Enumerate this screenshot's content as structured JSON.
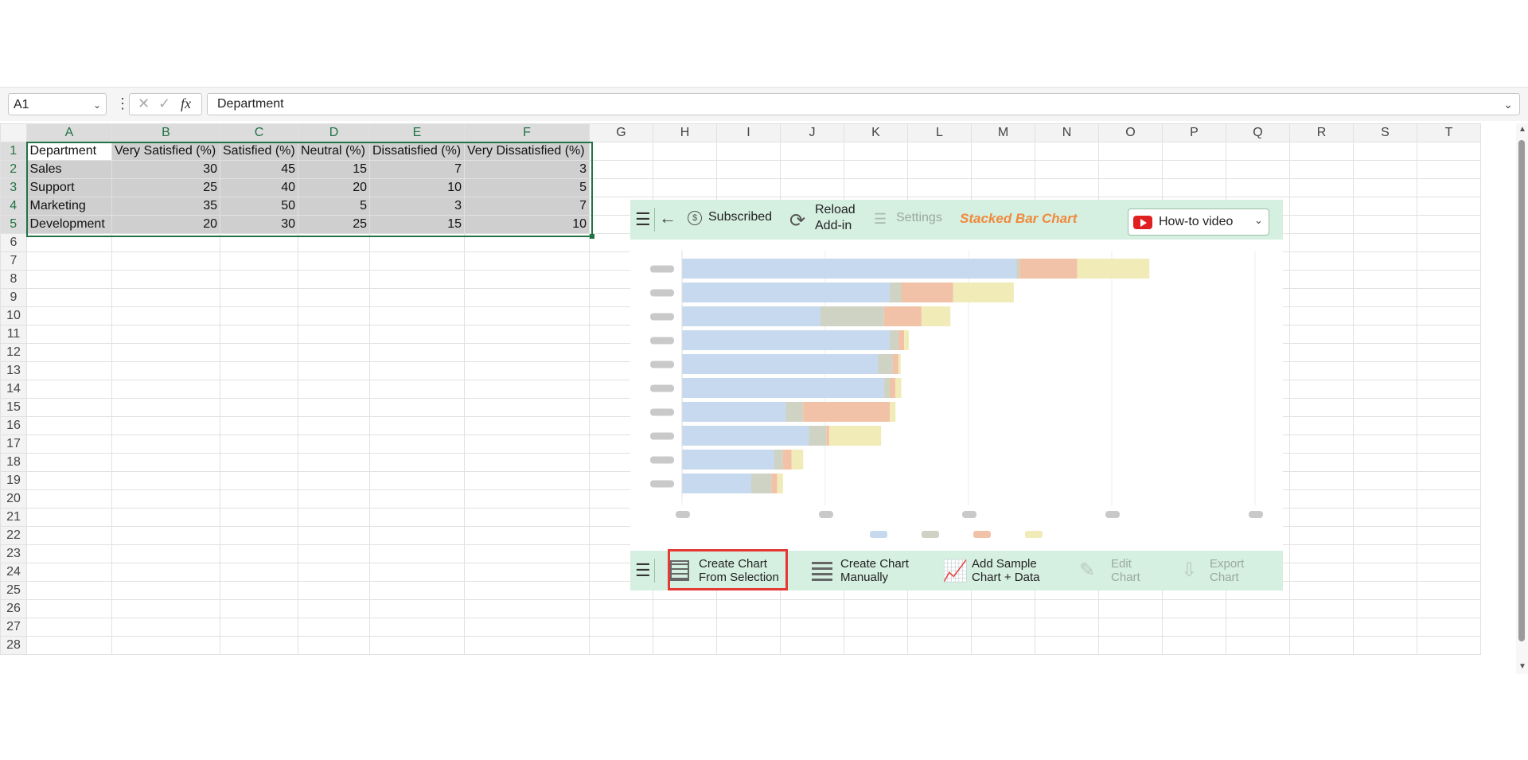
{
  "formula_bar": {
    "name_box": "A1",
    "formula": "Department",
    "fx_label": "fx"
  },
  "columns": [
    "A",
    "B",
    "C",
    "D",
    "E",
    "F",
    "G",
    "H",
    "I",
    "J",
    "K",
    "L",
    "M",
    "N",
    "O",
    "P",
    "Q",
    "R",
    "S",
    "T"
  ],
  "rows": [
    "1",
    "2",
    "3",
    "4",
    "5",
    "6",
    "7",
    "8",
    "9",
    "10",
    "11",
    "12",
    "13",
    "14",
    "15",
    "16",
    "17",
    "18",
    "19",
    "20",
    "21",
    "22",
    "23",
    "24",
    "25",
    "26",
    "27",
    "28"
  ],
  "sheet_data": {
    "header": [
      "Department",
      "Very Satisfied (%)",
      "Satisfied (%)",
      "Neutral (%)",
      "Dissatisfied (%)",
      "Very Dissatisfied (%)"
    ],
    "rows": [
      [
        "Sales",
        "30",
        "45",
        "15",
        "7",
        "3"
      ],
      [
        "Support",
        "25",
        "40",
        "20",
        "10",
        "5"
      ],
      [
        "Marketing",
        "35",
        "50",
        "5",
        "3",
        "7"
      ],
      [
        "Development",
        "20",
        "30",
        "25",
        "15",
        "10"
      ]
    ]
  },
  "panel": {
    "subscribed_label": "Subscribed",
    "reload_label_1": "Reload",
    "reload_label_2": "Add-in",
    "settings_label": "Settings",
    "chart_title": "Stacked Bar Chart",
    "howto_label": "How-to video",
    "create_selection_1": "Create Chart",
    "create_selection_2": "From Selection",
    "create_manual_1": "Create Chart",
    "create_manual_2": "Manually",
    "add_sample_1": "Add Sample",
    "add_sample_2": "Chart + Data",
    "edit_1": "Edit",
    "edit_2": "Chart",
    "export_1": "Export",
    "export_2": "Chart",
    "accent_title_color": "#f08a3c",
    "panel_bg": "#d5efe1"
  },
  "chart_data": {
    "type": "bar",
    "orientation": "horizontal",
    "stacked": true,
    "placeholder": true,
    "series_colors": [
      "#c6d9ef",
      "#cfd3c4",
      "#f2c2a8",
      "#f1ebb8"
    ],
    "series": [
      {
        "values": [
          58,
          36,
          24,
          36,
          34,
          35,
          18,
          22,
          16,
          12
        ]
      },
      {
        "values": [
          0.5,
          2,
          11,
          1.5,
          2.5,
          1,
          3,
          3,
          1.5,
          3.5
        ]
      },
      {
        "values": [
          10,
          9,
          6.5,
          1,
          1,
          1,
          15,
          0.5,
          1.5,
          1
        ]
      },
      {
        "values": [
          12.5,
          10.5,
          5,
          0.8,
          0.4,
          1,
          1,
          9,
          2,
          1
        ]
      }
    ],
    "x_ticks": 5,
    "legend_position": "bottom",
    "grid": true
  }
}
